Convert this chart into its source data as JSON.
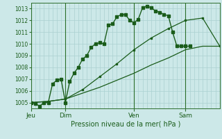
{
  "background_color": "#cce8e8",
  "grid_color": "#aad0d0",
  "line_color": "#1a5c1a",
  "title": "Pression niveau de la mer( hPa )",
  "ylim": [
    1004.5,
    1013.5
  ],
  "yticks": [
    1005,
    1006,
    1007,
    1008,
    1009,
    1010,
    1011,
    1012,
    1013
  ],
  "day_labels": [
    "Jeu",
    "Dim",
    "Ven",
    "Sam"
  ],
  "day_positions": [
    0,
    48,
    144,
    216
  ],
  "total_hours": 264,
  "line1_x": [
    0,
    6,
    12,
    18,
    24,
    30,
    36,
    42,
    48,
    54,
    60,
    66,
    72,
    78,
    84,
    90,
    96,
    102,
    108,
    114,
    120,
    126,
    132,
    138,
    144,
    150,
    156,
    162,
    168,
    174,
    180,
    186,
    192,
    198,
    204,
    210,
    216,
    222
  ],
  "line1_y": [
    1005.0,
    1004.9,
    1004.7,
    1005.0,
    1005.0,
    1006.6,
    1006.9,
    1007.0,
    1005.0,
    1006.8,
    1007.5,
    1008.0,
    1008.7,
    1009.0,
    1009.7,
    1010.0,
    1010.1,
    1010.0,
    1011.6,
    1011.7,
    1012.3,
    1012.5,
    1012.5,
    1012.0,
    1011.8,
    1012.1,
    1013.1,
    1013.2,
    1013.1,
    1012.8,
    1012.7,
    1012.5,
    1012.4,
    1011.0,
    1009.8,
    1009.8,
    1009.8,
    1009.8
  ],
  "line2_x": [
    0,
    24,
    48,
    72,
    96,
    120,
    144,
    168,
    192,
    216,
    240,
    264
  ],
  "line2_y": [
    1005.0,
    1005.1,
    1005.3,
    1005.8,
    1006.3,
    1006.9,
    1007.5,
    1008.2,
    1008.8,
    1009.5,
    1009.8,
    1009.8
  ],
  "line3_x": [
    0,
    24,
    48,
    72,
    96,
    120,
    144,
    168,
    192,
    216,
    240,
    264
  ],
  "line3_y": [
    1005.0,
    1005.1,
    1005.3,
    1006.1,
    1007.2,
    1008.3,
    1009.5,
    1010.5,
    1011.3,
    1012.0,
    1012.2,
    1009.8
  ]
}
